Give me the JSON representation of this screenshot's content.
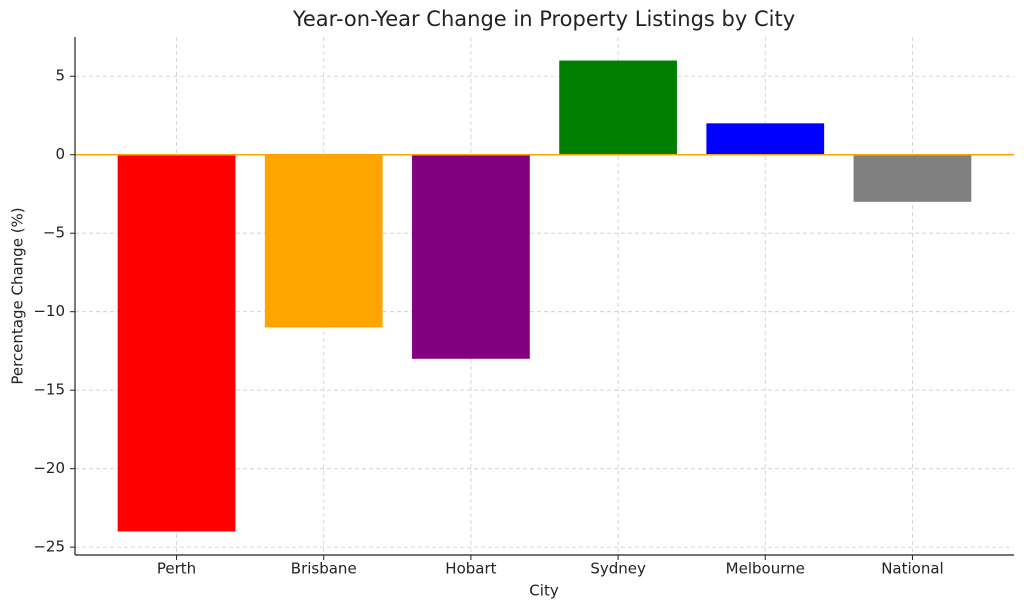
{
  "chart_data": {
    "type": "bar",
    "title": "Year-on-Year Change in Property Listings by City",
    "x_label": "City",
    "y_label": "Percentage Change (%)",
    "categories": [
      "Perth",
      "Brisbane",
      "Hobart",
      "Sydney",
      "Melbourne",
      "National"
    ],
    "values": [
      -24,
      -11,
      -13,
      6,
      2,
      -3
    ],
    "colors": [
      "#ff0000",
      "#ffa500",
      "#800080",
      "#008000",
      "#0000ff",
      "#808080"
    ],
    "ylim": [
      -25.5,
      7.5
    ],
    "yticks": [
      {
        "value": -25,
        "label": "−25"
      },
      {
        "value": -20,
        "label": "−20"
      },
      {
        "value": -15,
        "label": "−15"
      },
      {
        "value": -10,
        "label": "−10"
      },
      {
        "value": -5,
        "label": "−5"
      },
      0,
      5
    ],
    "hline": {
      "y": 0,
      "color": "#ffa500"
    },
    "grid": true
  }
}
